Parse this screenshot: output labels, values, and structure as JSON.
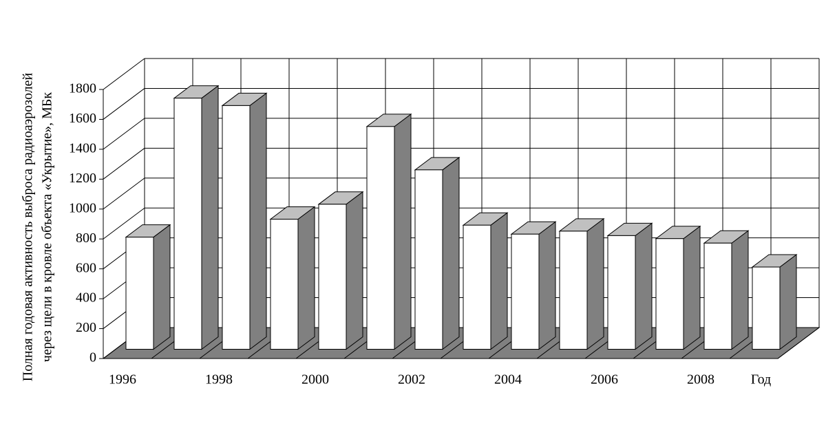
{
  "chart_data": {
    "type": "bar3d",
    "y_label": [
      "Полная годовая активность выброса радиоаэрозолей",
      "через щели в кровле объекта «Укрытие», МБк"
    ],
    "x_label": "Год",
    "categories": [
      "1996",
      null,
      "1998",
      null,
      "2000",
      null,
      "2002",
      null,
      "2004",
      null,
      "2006",
      null,
      "2008",
      null
    ],
    "values": [
      750,
      1680,
      1630,
      870,
      970,
      1490,
      1200,
      830,
      770,
      790,
      760,
      740,
      710,
      550
    ],
    "color": "#ffffff",
    "side_color": "#808080",
    "top_color": "#c0c0c0",
    "floor_color": "#808080",
    "ylim": [
      0,
      1800
    ],
    "yticks": [
      0,
      200,
      400,
      600,
      800,
      1000,
      1200,
      1400,
      1600,
      1800
    ],
    "grid": true
  }
}
